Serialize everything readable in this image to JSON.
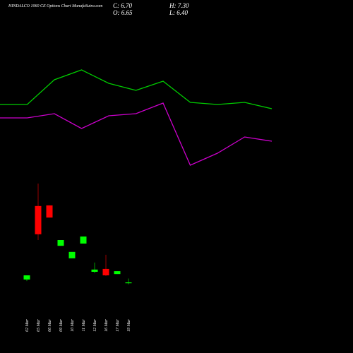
{
  "chart_data": [
    {
      "type": "candlestick",
      "title": "HINDALCO 1060  CE Options Chart MunafaSutra.com",
      "readout": [
        "C: 6.70",
        "O: 6.65",
        "H: 7.30",
        "L: 6.40"
      ],
      "categories": [
        "02 Mar",
        "05 Mar",
        "06 Mar",
        "09 Mar",
        "10 Mar",
        "11 Mar",
        "12 Mar",
        "16 Mar",
        "17 Mar",
        "19 Mar"
      ],
      "open": [
        7.15,
        18.6,
        18.7,
        12.4,
        10.45,
        12.75,
        8.35,
        8.8,
        8.0,
        6.65
      ],
      "high": [
        7.8,
        22.1,
        18.7,
        13.3,
        11.45,
        13.85,
        9.8,
        11.0,
        8.45,
        7.3
      ],
      "low": [
        6.9,
        13.3,
        16.8,
        12.4,
        10.45,
        12.75,
        8.15,
        7.7,
        8.0,
        6.4
      ],
      "close": [
        7.8,
        14.2,
        16.8,
        13.3,
        11.45,
        13.85,
        8.7,
        7.8,
        8.45,
        6.7
      ],
      "up_color": "#00ff00",
      "down_color": "#ff0000",
      "ylim": [
        -4.3,
        50.7
      ]
    },
    {
      "type": "line",
      "series": [
        {
          "color": "#00cc00",
          "values": [
            70.4,
            70.4,
            77.4,
            80.2,
            76.4,
            74.4,
            77,
            71,
            70.4,
            71,
            69.2
          ]
        },
        {
          "color": "#cc00cc",
          "values": [
            66.6,
            66.6,
            67.8,
            63.6,
            67.2,
            67.8,
            70.8,
            53.2,
            56.6,
            61.2,
            60
          ]
        }
      ],
      "ylim": [
        0,
        100
      ]
    }
  ]
}
